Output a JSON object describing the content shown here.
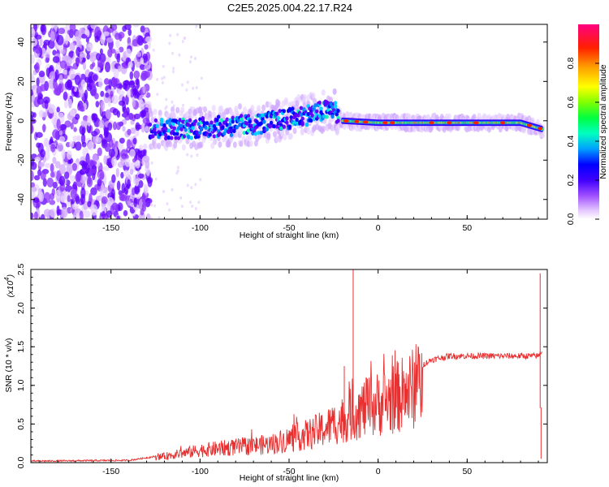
{
  "title": "C2E5.2025.004.22.17.R24",
  "chart_data": [
    {
      "type": "heatmap",
      "xlabel": "Height of straight line (km)",
      "ylabel": "Frequency (Hz)",
      "xlim": [
        -195,
        95
      ],
      "ylim": [
        -50,
        49
      ],
      "x_ticks": [
        "-150",
        "-100",
        "-50",
        "0",
        "50"
      ],
      "x_tick_values": [
        -150,
        -100,
        -50,
        0,
        50
      ],
      "y_ticks": [
        "-40",
        "-20",
        "0",
        "20",
        "40"
      ],
      "y_tick_values": [
        -40,
        -20,
        0,
        20,
        40
      ],
      "colorbar": {
        "label": "Normalized spectral amplitude",
        "range": [
          0,
          1
        ],
        "ticks": [
          "0.0",
          "0.2",
          "0.4",
          "0.6",
          "0.8"
        ],
        "tick_values": [
          0.0,
          0.2,
          0.4,
          0.6,
          0.8
        ],
        "colors": [
          "#ffffff",
          "#c080ff",
          "#6000ff",
          "#0000ff",
          "#00c0ff",
          "#00ff80",
          "#40ff00",
          "#ffff00",
          "#ff8000",
          "#ff0000",
          "#ff0080"
        ]
      },
      "centerline": {
        "x": [
          -130,
          -110,
          -90,
          -70,
          -50,
          -35,
          -25,
          -20,
          0,
          20,
          50,
          80,
          95
        ],
        "y": [
          -4,
          -4,
          -3,
          -2,
          1,
          4,
          6,
          0,
          -1,
          -1,
          -1,
          -1,
          -5
        ]
      }
    },
    {
      "type": "line",
      "xlabel": "Height of straight line (km)",
      "ylabel": "SNR (10 * v/v)",
      "multiplier": "(x10",
      "multiplier_exp": "4",
      "xlim": [
        -195,
        95
      ],
      "ylim": [
        0,
        2.5
      ],
      "x_ticks": [
        "-150",
        "-100",
        "-50",
        "0",
        "50"
      ],
      "x_tick_values": [
        -150,
        -100,
        -50,
        0,
        50
      ],
      "y_ticks": [
        "0.0",
        "0.5",
        "1.0",
        "1.5",
        "2.0",
        "2.5"
      ],
      "y_tick_values": [
        0,
        0.5,
        1.0,
        1.5,
        2.0,
        2.5
      ],
      "color": "#e83030",
      "envelope": {
        "x": [
          -195,
          -140,
          -125,
          -110,
          -100,
          -80,
          -60,
          -50,
          -40,
          -30,
          -20,
          -10,
          0,
          10,
          20,
          30,
          40,
          60,
          80,
          90,
          92
        ],
        "y": [
          0.02,
          0.03,
          0.08,
          0.15,
          0.2,
          0.25,
          0.3,
          0.38,
          0.45,
          0.55,
          0.7,
          0.85,
          0.95,
          1.05,
          1.2,
          1.33,
          1.38,
          1.38,
          1.38,
          1.38,
          1.45
        ]
      },
      "spikes": [
        {
          "x": -14,
          "y": 2.5
        },
        {
          "x": -19,
          "y": 1.25
        },
        {
          "x": 91,
          "y": 2.45
        },
        {
          "x": 91.5,
          "y": 0.05
        }
      ]
    }
  ]
}
